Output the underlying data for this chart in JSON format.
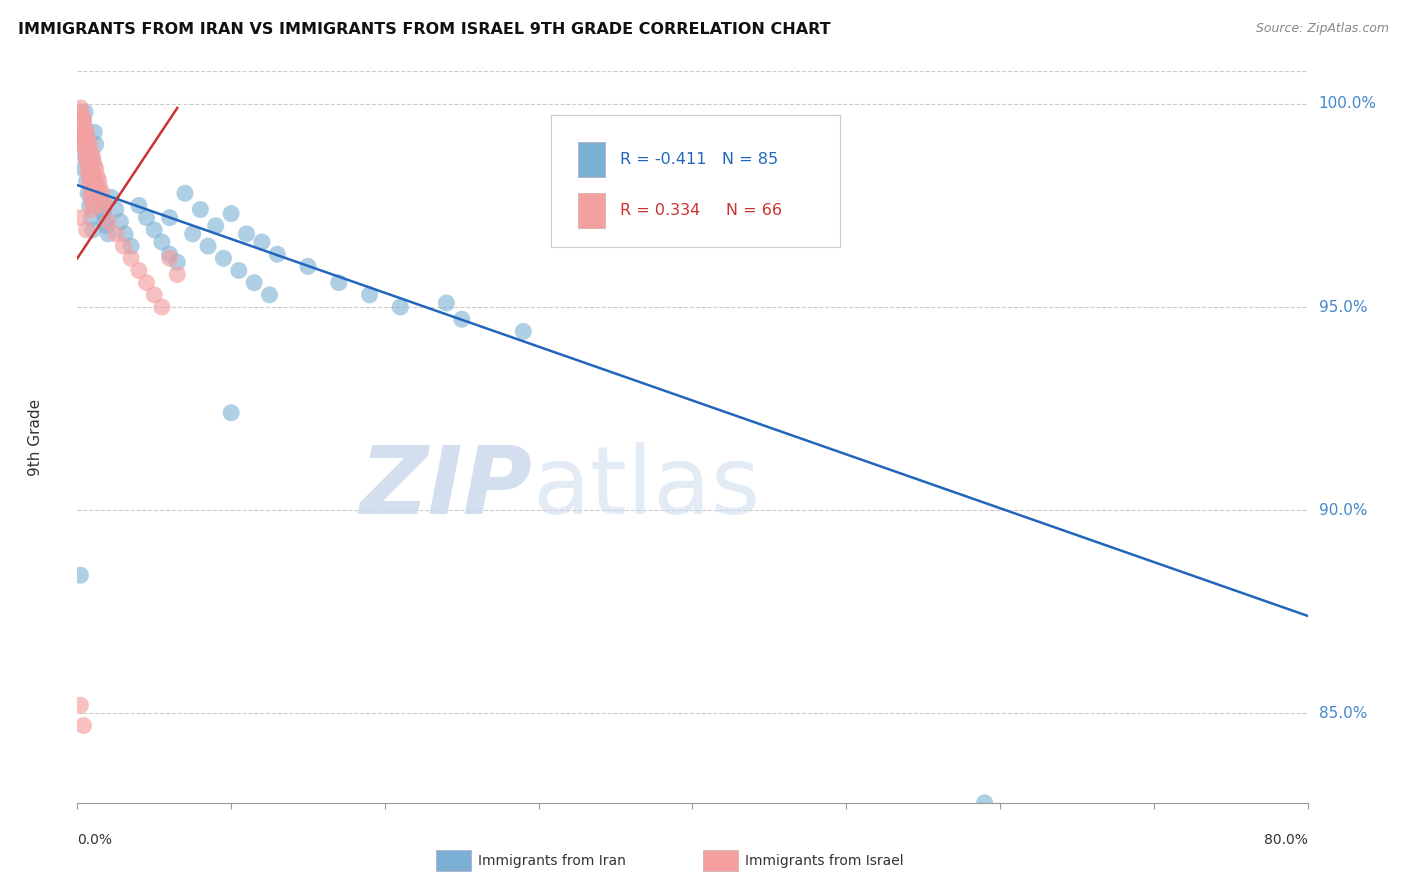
{
  "title": "IMMIGRANTS FROM IRAN VS IMMIGRANTS FROM ISRAEL 9TH GRADE CORRELATION CHART",
  "source": "Source: ZipAtlas.com",
  "ylabel": "9th Grade",
  "ytick_labels": [
    "85.0%",
    "90.0%",
    "95.0%",
    "100.0%"
  ],
  "ytick_values": [
    0.85,
    0.9,
    0.95,
    1.0
  ],
  "xlim": [
    0.0,
    0.8
  ],
  "ylim": [
    0.828,
    1.008
  ],
  "iran_color": "#7BAFD4",
  "israel_color": "#F4A0A0",
  "iran_line_color": "#2266BB",
  "israel_line_color": "#CC3333",
  "blue_trend_x": [
    0.0,
    0.8
  ],
  "blue_trend_y": [
    0.98,
    0.874
  ],
  "pink_trend_x": [
    0.0,
    0.065
  ],
  "pink_trend_y": [
    0.962,
    0.999
  ],
  "blue_points_x": [
    0.002,
    0.003,
    0.004,
    0.005,
    0.006,
    0.007,
    0.008,
    0.009,
    0.01,
    0.004,
    0.005,
    0.006,
    0.007,
    0.008,
    0.009,
    0.01,
    0.011,
    0.012,
    0.003,
    0.005,
    0.007,
    0.009,
    0.011,
    0.013,
    0.015,
    0.017,
    0.019,
    0.004,
    0.006,
    0.008,
    0.01,
    0.012,
    0.014,
    0.016,
    0.018,
    0.02,
    0.022,
    0.025,
    0.028,
    0.031,
    0.035,
    0.04,
    0.045,
    0.05,
    0.055,
    0.06,
    0.07,
    0.08,
    0.09,
    0.1,
    0.11,
    0.12,
    0.13,
    0.15,
    0.17,
    0.19,
    0.21,
    0.25,
    0.29,
    0.06,
    0.075,
    0.085,
    0.095,
    0.105,
    0.115,
    0.125,
    0.002,
    0.065,
    0.59,
    0.1,
    0.24
  ],
  "blue_points_y": [
    0.99,
    0.993,
    0.996,
    0.998,
    0.992,
    0.988,
    0.985,
    0.982,
    0.986,
    0.984,
    0.987,
    0.981,
    0.978,
    0.975,
    0.972,
    0.969,
    0.993,
    0.99,
    0.995,
    0.991,
    0.988,
    0.985,
    0.982,
    0.979,
    0.976,
    0.973,
    0.97,
    0.992,
    0.989,
    0.986,
    0.983,
    0.98,
    0.977,
    0.974,
    0.971,
    0.968,
    0.977,
    0.974,
    0.971,
    0.968,
    0.965,
    0.975,
    0.972,
    0.969,
    0.966,
    0.963,
    0.978,
    0.974,
    0.97,
    0.973,
    0.968,
    0.966,
    0.963,
    0.96,
    0.956,
    0.953,
    0.95,
    0.947,
    0.944,
    0.972,
    0.968,
    0.965,
    0.962,
    0.959,
    0.956,
    0.953,
    0.884,
    0.961,
    0.828,
    0.924,
    0.951
  ],
  "pink_points_x": [
    0.002,
    0.003,
    0.004,
    0.005,
    0.006,
    0.007,
    0.008,
    0.009,
    0.01,
    0.002,
    0.003,
    0.004,
    0.005,
    0.006,
    0.007,
    0.008,
    0.009,
    0.01,
    0.003,
    0.005,
    0.007,
    0.009,
    0.011,
    0.013,
    0.015,
    0.017,
    0.004,
    0.006,
    0.008,
    0.01,
    0.012,
    0.014,
    0.016,
    0.018,
    0.002,
    0.004,
    0.006,
    0.008,
    0.01,
    0.012,
    0.02,
    0.025,
    0.03,
    0.035,
    0.04,
    0.045,
    0.05,
    0.055,
    0.06,
    0.065,
    0.002,
    0.004,
    0.002,
    0.006
  ],
  "pink_points_y": [
    0.999,
    0.996,
    0.993,
    0.99,
    0.987,
    0.984,
    0.981,
    0.978,
    0.975,
    0.998,
    0.995,
    0.992,
    0.989,
    0.986,
    0.983,
    0.98,
    0.977,
    0.974,
    0.997,
    0.994,
    0.991,
    0.988,
    0.985,
    0.982,
    0.979,
    0.976,
    0.996,
    0.993,
    0.99,
    0.987,
    0.984,
    0.981,
    0.978,
    0.975,
    0.994,
    0.991,
    0.988,
    0.985,
    0.982,
    0.979,
    0.971,
    0.968,
    0.965,
    0.962,
    0.959,
    0.956,
    0.953,
    0.95,
    0.962,
    0.958,
    0.852,
    0.847,
    0.972,
    0.969
  ]
}
